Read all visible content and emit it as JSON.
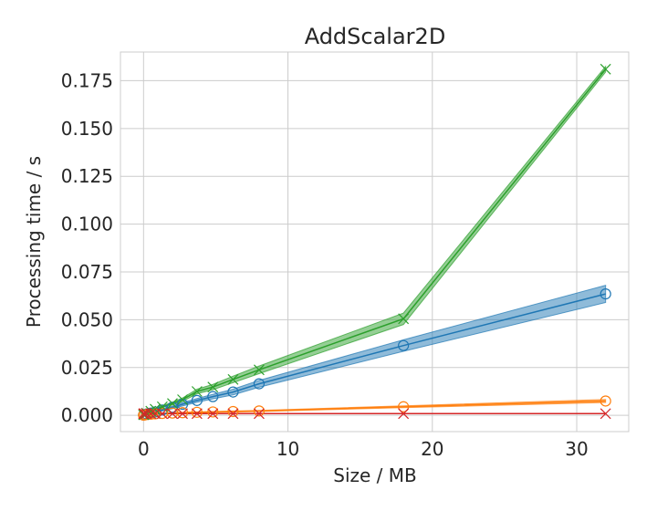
{
  "chart_data": {
    "type": "line",
    "title": "AddScalar2D",
    "xlabel": "Size / MB",
    "ylabel": "Processing time / s",
    "xlim": [
      -1.6,
      33.6
    ],
    "ylim": [
      -0.0085,
      0.19
    ],
    "xticks": [
      0,
      10,
      20,
      30
    ],
    "xtick_labels": [
      "0",
      "10",
      "20",
      "30"
    ],
    "yticks": [
      0.0,
      0.025,
      0.05,
      0.075,
      0.1,
      0.125,
      0.15,
      0.175
    ],
    "ytick_labels": [
      "0.000",
      "0.025",
      "0.050",
      "0.075",
      "0.100",
      "0.125",
      "0.150",
      "0.175"
    ],
    "grid": true,
    "legend": "none",
    "series": [
      {
        "color": "#1f77b4",
        "marker": "circle",
        "x": [
          0.0,
          0.05,
          0.2,
          0.5,
          0.8,
          1.3,
          2.0,
          2.7,
          3.7,
          4.8,
          6.2,
          8.0,
          18.0,
          32.0
        ],
        "y": [
          0.0002,
          0.0004,
          0.0007,
          0.0012,
          0.0018,
          0.0028,
          0.0042,
          0.0058,
          0.0078,
          0.0098,
          0.0122,
          0.0165,
          0.0365,
          0.0635
        ],
        "band": [
          0.0001,
          0.0001,
          0.0002,
          0.0003,
          0.0004,
          0.0005,
          0.0007,
          0.0009,
          0.001,
          0.0012,
          0.0015,
          0.0018,
          0.003,
          0.0045
        ]
      },
      {
        "color": "#ff7f0e",
        "marker": "circle",
        "x": [
          0.0,
          0.05,
          0.2,
          0.5,
          0.8,
          1.3,
          2.0,
          2.7,
          3.7,
          4.8,
          6.2,
          8.0,
          18.0,
          32.0
        ],
        "y": [
          0.0001,
          0.0002,
          0.0004,
          0.0006,
          0.0008,
          0.001,
          0.0012,
          0.0014,
          0.0016,
          0.0018,
          0.002,
          0.0023,
          0.0045,
          0.0075
        ],
        "band": [
          0.0001,
          0.0001,
          0.0001,
          0.0001,
          0.0001,
          0.0001,
          0.0002,
          0.0002,
          0.0002,
          0.0002,
          0.0003,
          0.0003,
          0.0005,
          0.0008
        ]
      },
      {
        "color": "#2ca02c",
        "marker": "x",
        "x": [
          0.0,
          0.05,
          0.2,
          0.5,
          0.8,
          1.3,
          2.0,
          2.7,
          3.7,
          4.8,
          6.2,
          8.0,
          18.0,
          32.0
        ],
        "y": [
          0.0003,
          0.0005,
          0.0012,
          0.0022,
          0.0032,
          0.0045,
          0.0062,
          0.0082,
          0.0125,
          0.0148,
          0.0188,
          0.0238,
          0.0505,
          0.181
        ],
        "band": [
          0.0001,
          0.0001,
          0.0002,
          0.0003,
          0.0004,
          0.0005,
          0.0007,
          0.0009,
          0.0012,
          0.0014,
          0.0017,
          0.002,
          0.003,
          0.0015
        ]
      },
      {
        "color": "#d62728",
        "marker": "x",
        "x": [
          0.0,
          0.05,
          0.2,
          0.5,
          0.8,
          1.3,
          2.0,
          2.7,
          3.7,
          4.8,
          6.2,
          8.0,
          18.0,
          32.0
        ],
        "y": [
          0.0009,
          0.0009,
          0.0009,
          0.0009,
          0.0009,
          0.0009,
          0.0009,
          0.0009,
          0.0009,
          0.0009,
          0.0009,
          0.0009,
          0.0009,
          0.0009
        ],
        "band": [
          0.0001,
          0.0001,
          0.0001,
          0.0001,
          0.0001,
          0.0001,
          0.0001,
          0.0001,
          0.0001,
          0.0001,
          0.0001,
          0.0001,
          0.0001,
          0.0001
        ]
      }
    ]
  }
}
